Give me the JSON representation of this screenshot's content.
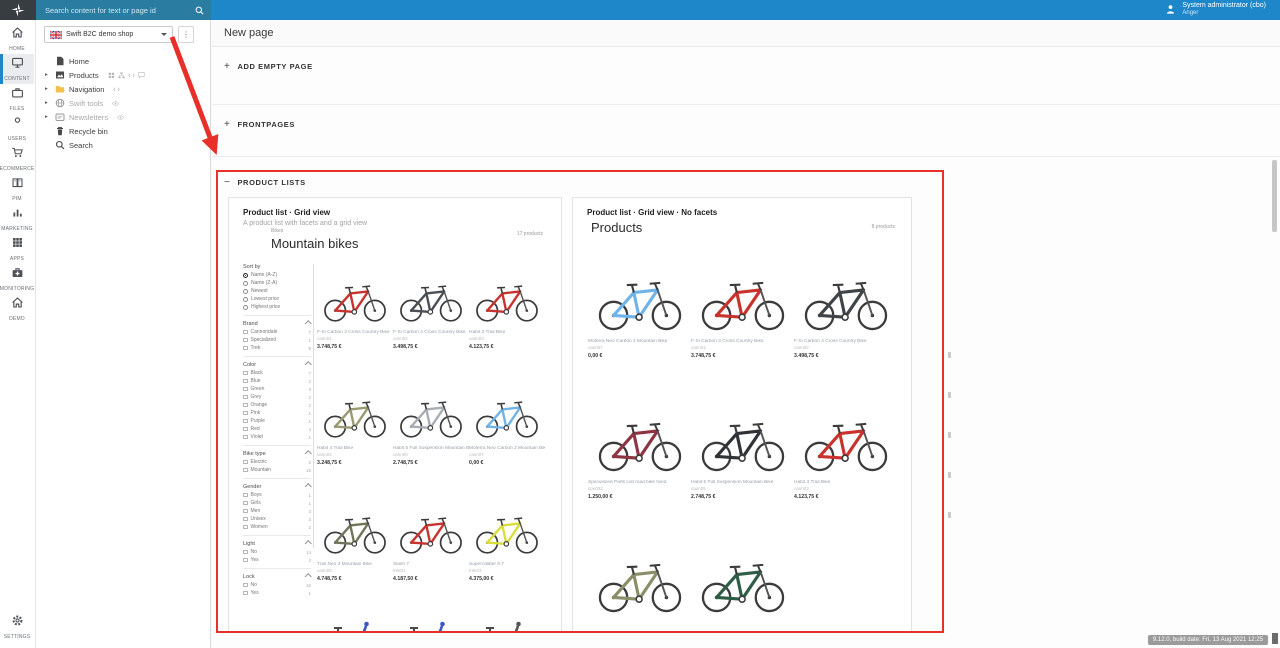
{
  "icons": {
    "caret_right": "▸",
    "kebab": "⋮",
    "plus": "+",
    "minus": "−"
  },
  "topbar": {
    "search_placeholder": "Search content for text or page id",
    "user_name": "System administrator (cbo)",
    "user_area": "Anger",
    "colors": {
      "bar": "#1d87c9",
      "search": "#2a7da1",
      "logo_bg": "#383d42"
    }
  },
  "nav_rail": {
    "items": [
      {
        "label": "HOME",
        "icon": "home-icon"
      },
      {
        "label": "CONTENT",
        "icon": "monitor-icon",
        "active": true
      },
      {
        "label": "FILES",
        "icon": "briefcase-icon"
      },
      {
        "label": "USERS",
        "icon": "user-icon"
      },
      {
        "label": "ECOMMERCE",
        "icon": "cart-icon"
      },
      {
        "label": "PIM",
        "icon": "book-icon"
      },
      {
        "label": "MARKETING",
        "icon": "chart-icon"
      },
      {
        "label": "APPS",
        "icon": "grid-icon"
      },
      {
        "label": "MONITORING",
        "icon": "medkit-icon"
      },
      {
        "label": "DEMO",
        "icon": "home-icon"
      }
    ],
    "settings": {
      "label": "SETTINGS",
      "icon": "gear-icon"
    }
  },
  "tree": {
    "site_selector_label": "Swift B2C demo shop",
    "items": [
      {
        "label": "Home",
        "icon": "page-icon"
      },
      {
        "label": "Products",
        "icon": "image-icon",
        "caret": true,
        "trailing": [
          "grid-small-icon",
          "sitemap-icon",
          "code-icon",
          "comment-icon"
        ]
      },
      {
        "label": "Navigation",
        "icon": "folder-icon",
        "caret": true,
        "trailing": [
          "code-icon"
        ]
      },
      {
        "label": "Swift tools",
        "icon": "globe-icon",
        "caret": true,
        "muted": true,
        "trailing": [
          "eye-icon"
        ]
      },
      {
        "label": "Newsletters",
        "icon": "newsletter-icon",
        "caret": true,
        "muted": true,
        "trailing": [
          "eye-icon"
        ]
      },
      {
        "label": "Recycle bin",
        "icon": "trash-icon"
      },
      {
        "label": "Search",
        "icon": "search-icon"
      }
    ]
  },
  "main": {
    "page_title": "New page",
    "sections": [
      {
        "label": "ADD EMPTY PAGE",
        "state": "collapsed"
      },
      {
        "label": "FRONTPAGES",
        "state": "collapsed"
      },
      {
        "label": "PRODUCT LISTS",
        "state": "expanded"
      }
    ],
    "cards": [
      {
        "title": "Product list · Grid view",
        "subtitle": "A product list with facets and a grid view",
        "preview": {
          "eyebrow": "Bikes",
          "heading": "Mountain bikes",
          "count": "17 products",
          "facets": [
            {
              "title": "Sort by",
              "type": "radio",
              "collapsible": false,
              "options": [
                {
                  "label": "Name (A-Z)",
                  "selected": true
                },
                {
                  "label": "Name (Z-A)"
                },
                {
                  "label": "Newest"
                },
                {
                  "label": "Lowest price"
                },
                {
                  "label": "Highest price"
                }
              ]
            },
            {
              "title": "Brand",
              "type": "checkbox",
              "collapsible": true,
              "options": [
                {
                  "label": "Cannondale",
                  "count": "7"
                },
                {
                  "label": "Specialized",
                  "count": "1"
                },
                {
                  "label": "Trek",
                  "count": "9"
                }
              ]
            },
            {
              "title": "Color",
              "type": "checkbox",
              "collapsible": true,
              "options": [
                {
                  "label": "Black",
                  "count": "7"
                },
                {
                  "label": "Blue",
                  "count": "2"
                },
                {
                  "label": "Green",
                  "count": "3"
                },
                {
                  "label": "Grey",
                  "count": "2"
                },
                {
                  "label": "Orange",
                  "count": "2"
                },
                {
                  "label": "Pink",
                  "count": "1"
                },
                {
                  "label": "Purple",
                  "count": "1"
                },
                {
                  "label": "Red",
                  "count": "4"
                },
                {
                  "label": "Violet",
                  "count": "1"
                }
              ]
            },
            {
              "title": "Bike type",
              "type": "checkbox",
              "collapsible": true,
              "options": [
                {
                  "label": "Electric",
                  "count": "2"
                },
                {
                  "label": "Mountain",
                  "count": "15"
                }
              ]
            },
            {
              "title": "Gender",
              "type": "checkbox",
              "collapsible": true,
              "options": [
                {
                  "label": "Boys",
                  "count": "1"
                },
                {
                  "label": "Girls",
                  "count": "1"
                },
                {
                  "label": "Men",
                  "count": "3"
                },
                {
                  "label": "Unisex",
                  "count": "3"
                },
                {
                  "label": "Women",
                  "count": "2"
                }
              ]
            },
            {
              "title": "Light",
              "type": "checkbox",
              "collapsible": true,
              "options": [
                {
                  "label": "No",
                  "count": "14"
                },
                {
                  "label": "Yes",
                  "count": "3"
                }
              ]
            },
            {
              "title": "Lock",
              "type": "checkbox",
              "collapsible": true,
              "options": [
                {
                  "label": "No",
                  "count": "16"
                },
                {
                  "label": "Yes",
                  "count": "1"
                }
              ]
            }
          ],
          "products": [
            {
              "name": "F-Si Carbon 3 Cross Country Bike",
              "sku": "cann01",
              "price": "3.748,75 €",
              "color": "#c8332e"
            },
            {
              "name": "F-Si Carbon 4 Cross Country Bike",
              "sku": "cann02",
              "price": "3.498,75 €",
              "color": "#4a4f54"
            },
            {
              "name": "Habit 3 Trail Bike",
              "sku": "cann03",
              "price": "4.123,75 €",
              "color": "#c8332e"
            },
            {
              "name": "Habit 4 Trail Bike",
              "sku": "cann04",
              "price": "3.248,75 €",
              "color": "#9a9a72"
            },
            {
              "name": "Habit 5 Full Suspension Mountain Bike",
              "sku": "cann05",
              "price": "2.748,75 €",
              "color": "#a8adb3"
            },
            {
              "name": "Moterra Neo Carbon 2 Mountain Bike",
              "sku": "cann07",
              "price": "0,00 €",
              "color": "#6fb3e8"
            },
            {
              "name": "Trail Neo 3 Mountain Bike",
              "sku": "cann08",
              "price": "4.748,75 €",
              "color": "#70755a"
            },
            {
              "name": "Slash 7",
              "sku": "trek01",
              "price": "4.187,50 €",
              "color": "#c8332e"
            },
            {
              "name": "Supercaliber 9.7",
              "sku": "trek03",
              "price": "4.375,00 €",
              "color": "#d8dd3a"
            }
          ],
          "parts_row_colors": [
            "#3a57c4",
            "#3a57c4",
            "#555555"
          ]
        }
      },
      {
        "title": "Product list · Grid view · No facets",
        "subtitle": "",
        "preview": {
          "heading": "Products",
          "count": "8 products",
          "products": [
            {
              "name": "Moterra Neo Carbon 2 Mountain Bike",
              "sku": "cann07",
              "price": "0,00 €",
              "color": "#6fb3e8"
            },
            {
              "name": "F-Si Carbon 3 Cross Country Bike",
              "sku": "cann01",
              "price": "3.748,75 €",
              "color": "#c8332e"
            },
            {
              "name": "F-Si Carbon 4 Cross Country Bike",
              "sku": "cann02",
              "price": "3.498,75 €",
              "color": "#3f4449"
            },
            {
              "name": "Specialized Parts List road bike fixed",
              "sku": "spe002",
              "price": "1.250,00 €",
              "color": "#8e3544"
            },
            {
              "name": "Habit 5 Full Suspension Mountain Bike",
              "sku": "cann05",
              "price": "2.748,75 €",
              "color": "#2f3338"
            },
            {
              "name": "Habit 3 Trail Bike",
              "sku": "cann03",
              "price": "4.123,75 €",
              "color": "#c8332e"
            },
            {
              "name": "",
              "sku": "",
              "price": "",
              "color": "#8a8f6a"
            },
            {
              "name": "",
              "sku": "",
              "price": "",
              "color": "#2e5d46"
            }
          ]
        }
      }
    ]
  },
  "annotation": {
    "color": "#e8302a"
  },
  "statusbar": {
    "version_text": "9.12.0, build date: Fri, 13 Aug 2021 12:25"
  }
}
